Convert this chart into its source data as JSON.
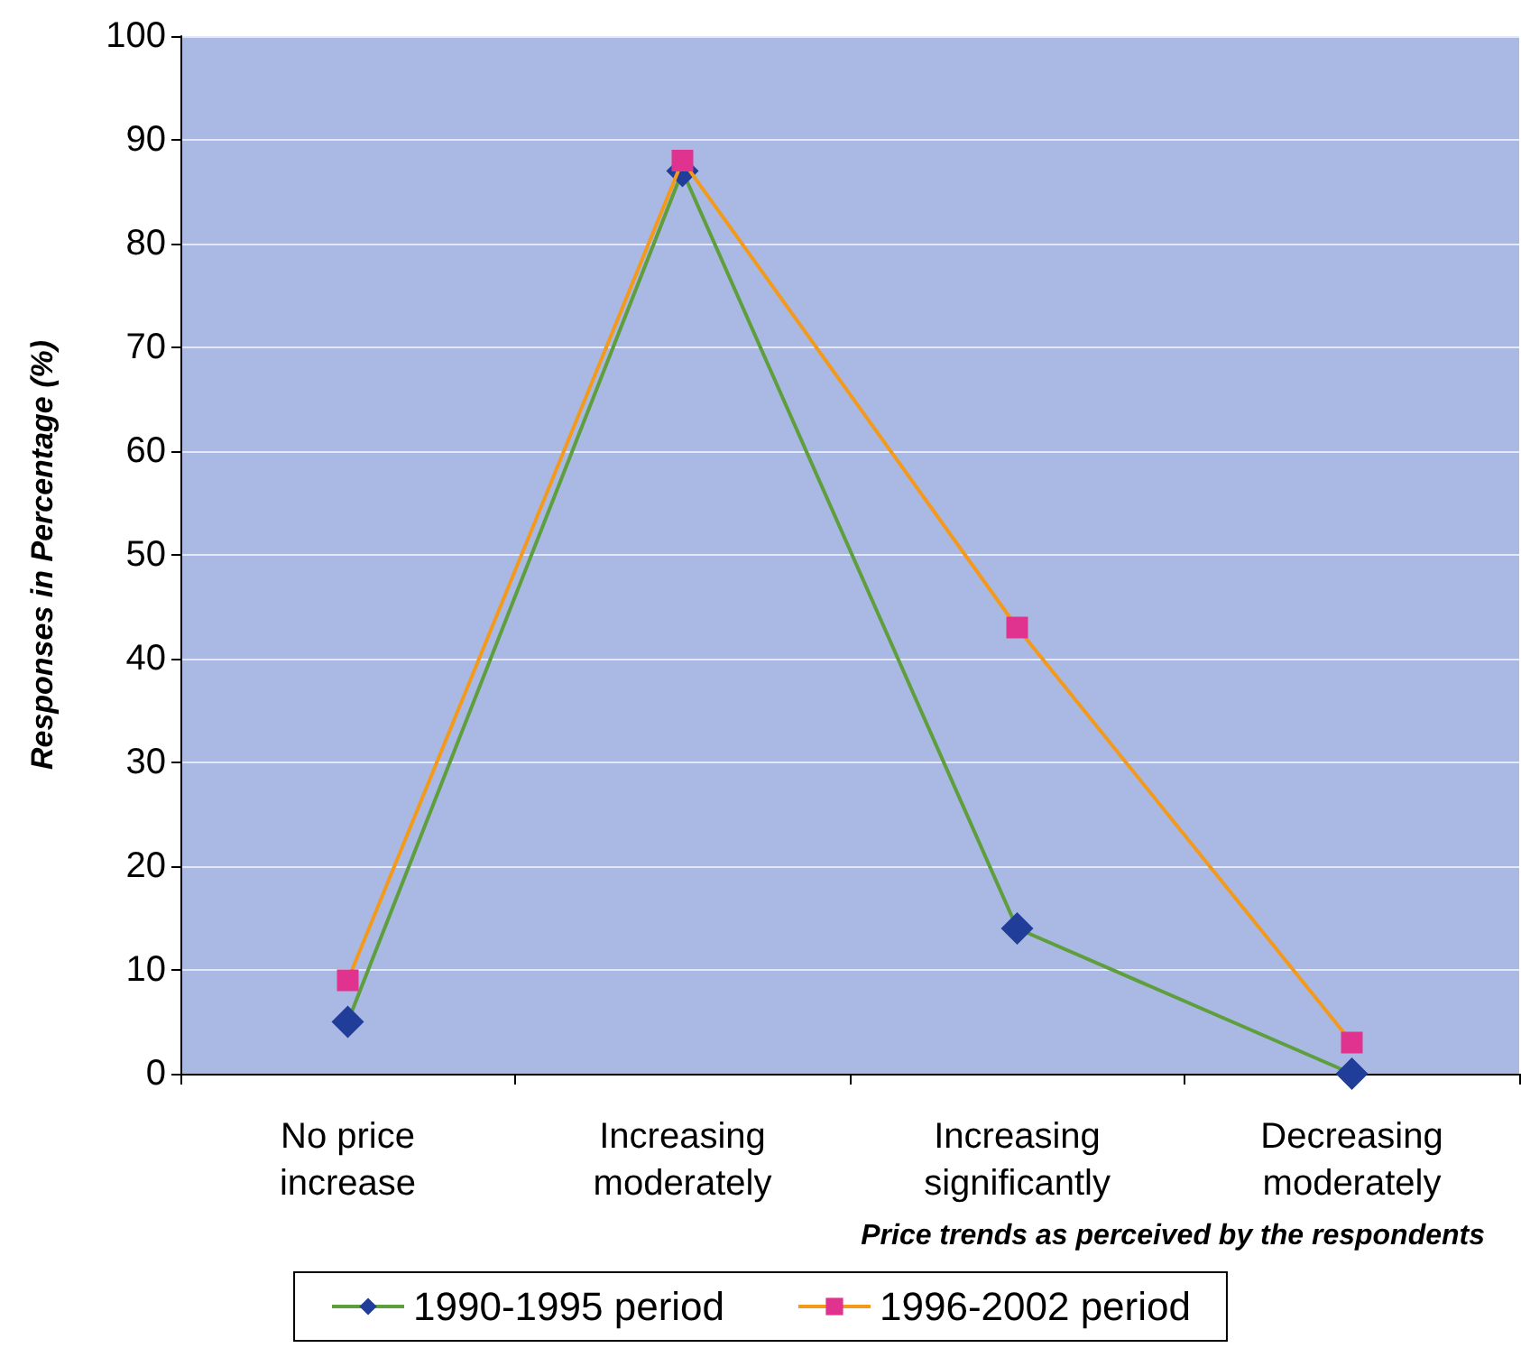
{
  "chart_data": {
    "type": "line",
    "xlabel": "Price trends as perceived by the respondents",
    "ylabel": "Responses in Percentage (%)",
    "categories": [
      "No price\nincrease",
      "Increasing\nmoderately",
      "Increasing\nsignificantly",
      "Decreasing\nmoderately"
    ],
    "series": [
      {
        "name": "1990-1995 period",
        "color": "#5f9e3c",
        "marker": "diamond",
        "values": [
          5,
          87,
          14,
          0
        ]
      },
      {
        "name": "1996-2002 period",
        "color": "#f39a1c",
        "marker": "square",
        "values": [
          9,
          88,
          43,
          3
        ]
      }
    ],
    "ylim": [
      0,
      100
    ],
    "yticks": [
      0,
      10,
      20,
      30,
      40,
      50,
      60,
      70,
      80,
      90,
      100
    ],
    "grid": "y",
    "legend": "bottom"
  }
}
